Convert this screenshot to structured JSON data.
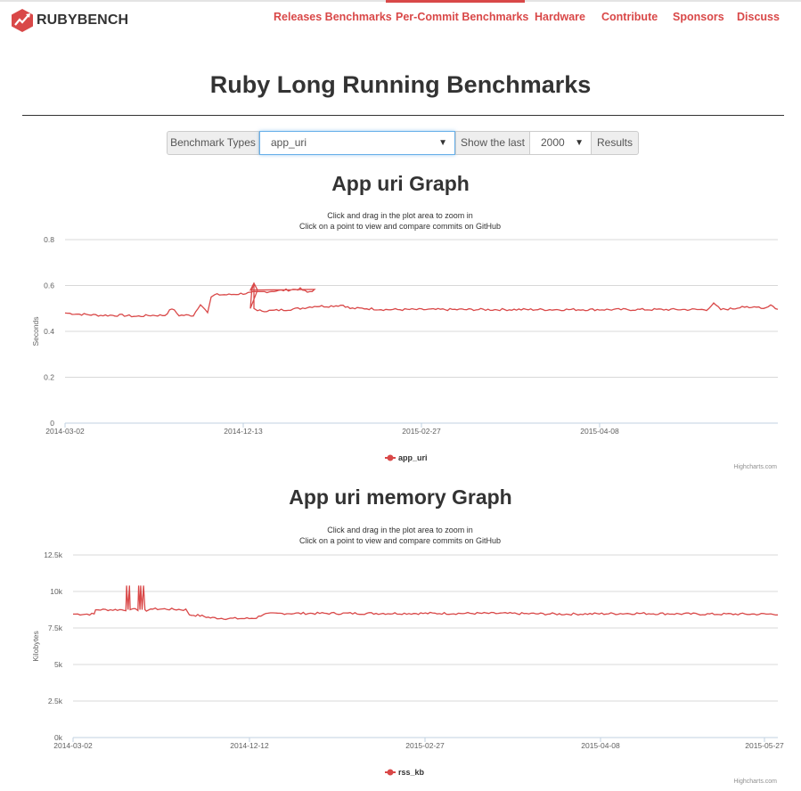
{
  "brand": {
    "name": "RUBYBENCH",
    "logo_icon": "ruby-hexagon-icon",
    "accent": "#d94848"
  },
  "nav": {
    "items": [
      {
        "label": "Releases Benchmarks",
        "active": false
      },
      {
        "label": "Per-Commit Benchmarks",
        "active": true
      },
      {
        "label": "Hardware",
        "active": false
      },
      {
        "label": "Contribute",
        "active": false
      },
      {
        "label": "Sponsors",
        "active": false
      },
      {
        "label": "Discuss",
        "active": false
      }
    ]
  },
  "page": {
    "title": "Ruby Long Running Benchmarks"
  },
  "controls": {
    "benchmark_types_label": "Benchmark Types",
    "benchmark_selected": "app_uri",
    "show_last_label": "Show the last",
    "show_last_value": "2000",
    "results_label": "Results"
  },
  "chart_data": [
    {
      "type": "line",
      "title": "App uri Graph",
      "subtitle": [
        "Click and drag in the plot area to zoom in",
        "Click on a point to view and compare commits on GitHub"
      ],
      "ylabel": "Seconds",
      "ylim": [
        0,
        0.8
      ],
      "yticks": [
        "0",
        "0.2",
        "0.4",
        "0.6",
        "0.8"
      ],
      "xticks": [
        "2014-03-02",
        "2014-12-13",
        "2015-02-27",
        "2015-04-08"
      ],
      "grid": true,
      "legend": "bottom-center",
      "credits": "Highcharts.com",
      "series": [
        {
          "name": "app_uri",
          "color": "#d94848",
          "points": [
            [
              0,
              0.48
            ],
            [
              2,
              0.475
            ],
            [
              5,
              0.47
            ],
            [
              8,
              0.47
            ],
            [
              10,
              0.465
            ],
            [
              12,
              0.47
            ],
            [
              14,
              0.47
            ],
            [
              15,
              0.5
            ],
            [
              16,
              0.47
            ],
            [
              18,
              0.47
            ],
            [
              19,
              0.52
            ],
            [
              20,
              0.48
            ],
            [
              20.5,
              0.55
            ],
            [
              21,
              0.56
            ],
            [
              23,
              0.56
            ],
            [
              25,
              0.565
            ],
            [
              27,
              0.57
            ],
            [
              29,
              0.575
            ],
            [
              31,
              0.58
            ],
            [
              33,
              0.585
            ],
            [
              34,
              0.57
            ],
            [
              35,
              0.58
            ],
            [
              26,
              0.58
            ],
            [
              26.5,
              0.61
            ],
            [
              27,
              0.58
            ],
            [
              26,
              0.5
            ],
            [
              26.2,
              0.58
            ],
            [
              26.5,
              0.61
            ],
            [
              26.5,
              0.5
            ],
            [
              27,
              0.49
            ],
            [
              29,
              0.49
            ],
            [
              31,
              0.495
            ],
            [
              33,
              0.5
            ],
            [
              35,
              0.51
            ],
            [
              37,
              0.51
            ],
            [
              39,
              0.515
            ],
            [
              40,
              0.5
            ],
            [
              41,
              0.5
            ],
            [
              42,
              0.5
            ],
            [
              45,
              0.495
            ],
            [
              50,
              0.495
            ],
            [
              55,
              0.495
            ],
            [
              60,
              0.495
            ],
            [
              65,
              0.495
            ],
            [
              70,
              0.495
            ],
            [
              75,
              0.495
            ],
            [
              80,
              0.495
            ],
            [
              85,
              0.495
            ],
            [
              90,
              0.495
            ],
            [
              91,
              0.52
            ],
            [
              92,
              0.495
            ],
            [
              94,
              0.5
            ],
            [
              95,
              0.51
            ],
            [
              96,
              0.5
            ],
            [
              97,
              0.51
            ],
            [
              98,
              0.5
            ],
            [
              99,
              0.515
            ],
            [
              100,
              0.495
            ]
          ]
        }
      ]
    },
    {
      "type": "line",
      "title": "App uri memory Graph",
      "subtitle": [
        "Click and drag in the plot area to zoom in",
        "Click on a point to view and compare commits on GitHub"
      ],
      "ylabel": "Kilobytes",
      "ylim": [
        0,
        12500
      ],
      "yticks": [
        "0k",
        "2.5k",
        "5k",
        "7.5k",
        "10k",
        "12.5k"
      ],
      "xticks": [
        "2014-03-02",
        "2014-12-12",
        "2015-02-27",
        "2015-04-08",
        "2015-05-27"
      ],
      "grid": true,
      "legend": "bottom-center",
      "credits": "Highcharts.com",
      "series": [
        {
          "name": "rss_kb",
          "color": "#d94848",
          "points": [
            [
              0,
              8450
            ],
            [
              3,
              8450
            ],
            [
              3.2,
              8750
            ],
            [
              6,
              8750
            ],
            [
              7.5,
              8750
            ],
            [
              7.6,
              10400
            ],
            [
              7.8,
              8750
            ],
            [
              8,
              10400
            ],
            [
              8.1,
              8750
            ],
            [
              9.2,
              8750
            ],
            [
              9.3,
              10400
            ],
            [
              9.5,
              8750
            ],
            [
              9.6,
              10400
            ],
            [
              9.8,
              8750
            ],
            [
              10,
              10400
            ],
            [
              10.2,
              8750
            ],
            [
              10.4,
              8650
            ],
            [
              11,
              8800
            ],
            [
              13,
              8800
            ],
            [
              16,
              8750
            ],
            [
              16.5,
              8400
            ],
            [
              18,
              8350
            ],
            [
              19.5,
              8200
            ],
            [
              22,
              8150
            ],
            [
              25,
              8150
            ],
            [
              26,
              8200
            ],
            [
              27,
              8450
            ],
            [
              30,
              8500
            ],
            [
              40,
              8500
            ],
            [
              50,
              8500
            ],
            [
              60,
              8500
            ],
            [
              70,
              8450
            ],
            [
              80,
              8500
            ],
            [
              90,
              8450
            ],
            [
              100,
              8450
            ]
          ]
        }
      ]
    }
  ]
}
